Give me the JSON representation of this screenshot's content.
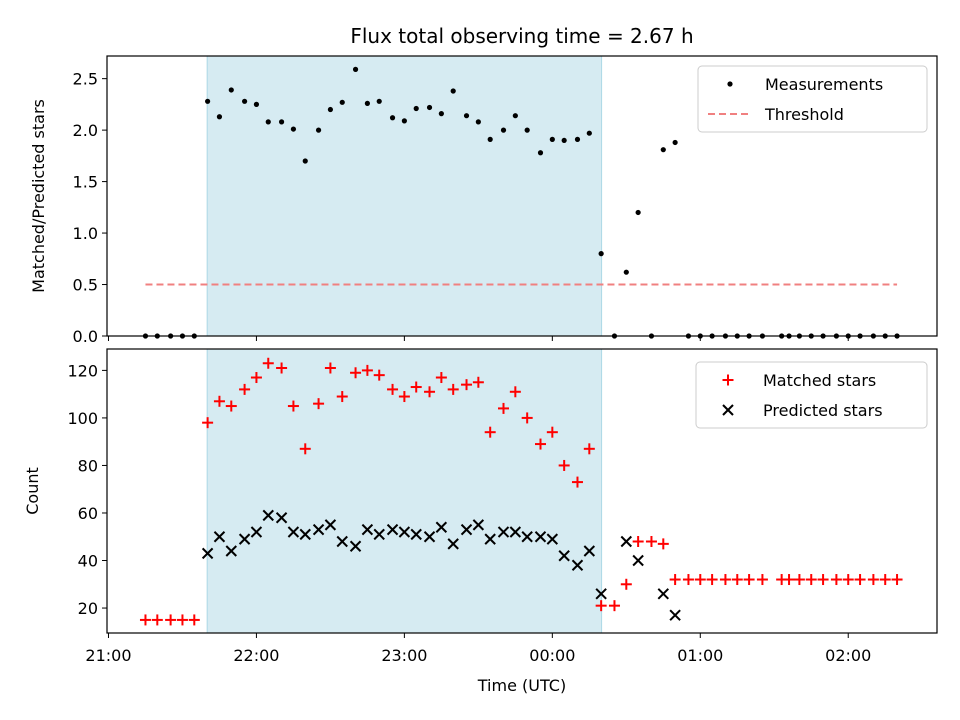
{
  "chart_data": {
    "type": "scatter",
    "title": "Flux total observing time = 2.67 h",
    "xlabel": "Time (UTC)",
    "x_ticks": [
      "21:00",
      "22:00",
      "23:00",
      "00:00",
      "01:00",
      "02:00"
    ],
    "x_tick_hours": [
      21,
      22,
      23,
      24,
      25,
      26
    ],
    "xlim_hours": [
      20.99,
      26.6
    ],
    "shaded_region_hours": [
      21.667,
      24.333
    ],
    "colors": {
      "shade": "#add8e6",
      "matched": "#ff0000",
      "predicted": "#000000",
      "threshold": "#f08080",
      "measurements": "#000000"
    },
    "panels": [
      {
        "ylabel": "Matched/Predicted stars",
        "ylim": [
          0,
          2.72
        ],
        "y_ticks": [
          "0.0",
          "0.5",
          "1.0",
          "1.5",
          "2.0",
          "2.5"
        ],
        "y_tick_values": [
          0,
          0.5,
          1.0,
          1.5,
          2.0,
          2.5
        ],
        "legend": {
          "placement": "top-right",
          "entries": [
            "Measurements",
            "Threshold"
          ]
        },
        "series": [
          {
            "name": "Measurements",
            "marker": "dot",
            "points": [
              [
                21.25,
                0
              ],
              [
                21.33,
                0
              ],
              [
                21.42,
                0
              ],
              [
                21.5,
                0
              ],
              [
                21.58,
                0
              ],
              [
                21.67,
                2.28
              ],
              [
                21.75,
                2.13
              ],
              [
                21.83,
                2.39
              ],
              [
                21.92,
                2.28
              ],
              [
                22.0,
                2.25
              ],
              [
                22.08,
                2.08
              ],
              [
                22.17,
                2.08
              ],
              [
                22.25,
                2.01
              ],
              [
                22.33,
                1.7
              ],
              [
                22.42,
                2.0
              ],
              [
                22.5,
                2.2
              ],
              [
                22.58,
                2.27
              ],
              [
                22.67,
                2.59
              ],
              [
                22.75,
                2.26
              ],
              [
                22.83,
                2.28
              ],
              [
                22.92,
                2.12
              ],
              [
                23.0,
                2.09
              ],
              [
                23.08,
                2.21
              ],
              [
                23.17,
                2.22
              ],
              [
                23.25,
                2.16
              ],
              [
                23.33,
                2.38
              ],
              [
                23.42,
                2.14
              ],
              [
                23.5,
                2.08
              ],
              [
                23.58,
                1.91
              ],
              [
                23.67,
                2.0
              ],
              [
                23.75,
                2.14
              ],
              [
                23.83,
                2.0
              ],
              [
                23.92,
                1.78
              ],
              [
                24.0,
                1.91
              ],
              [
                24.08,
                1.9
              ],
              [
                24.17,
                1.91
              ],
              [
                24.25,
                1.97
              ],
              [
                24.33,
                0.8
              ],
              [
                24.42,
                0
              ],
              [
                24.5,
                0.62
              ],
              [
                24.58,
                1.2
              ],
              [
                24.67,
                0
              ],
              [
                24.75,
                1.81
              ],
              [
                24.83,
                1.88
              ],
              [
                24.92,
                0
              ],
              [
                25.0,
                0
              ],
              [
                25.08,
                0
              ],
              [
                25.17,
                0
              ],
              [
                25.25,
                0
              ],
              [
                25.33,
                0
              ],
              [
                25.42,
                0
              ],
              [
                25.55,
                0
              ],
              [
                25.6,
                0
              ],
              [
                25.67,
                0
              ],
              [
                25.75,
                0
              ],
              [
                25.83,
                0
              ],
              [
                25.92,
                0
              ],
              [
                26.0,
                0
              ],
              [
                26.08,
                0
              ],
              [
                26.17,
                0
              ],
              [
                26.25,
                0
              ],
              [
                26.33,
                0
              ]
            ]
          },
          {
            "name": "Threshold",
            "marker": "dashed-line",
            "points": [
              [
                21.25,
                0.5
              ],
              [
                26.33,
                0.5
              ]
            ]
          }
        ]
      },
      {
        "ylabel": "Count",
        "ylim": [
          9.5,
          129
        ],
        "y_ticks": [
          "20",
          "40",
          "60",
          "80",
          "100",
          "120"
        ],
        "y_tick_values": [
          20,
          40,
          60,
          80,
          100,
          120
        ],
        "legend": {
          "placement": "top-right",
          "entries": [
            "Matched stars",
            "Predicted stars"
          ]
        },
        "series": [
          {
            "name": "Matched stars",
            "marker": "plus",
            "points": [
              [
                21.25,
                15
              ],
              [
                21.33,
                15
              ],
              [
                21.42,
                15
              ],
              [
                21.5,
                15
              ],
              [
                21.58,
                15
              ],
              [
                21.67,
                98
              ],
              [
                21.75,
                107
              ],
              [
                21.83,
                105
              ],
              [
                21.92,
                112
              ],
              [
                22.0,
                117
              ],
              [
                22.08,
                123
              ],
              [
                22.17,
                121
              ],
              [
                22.25,
                105
              ],
              [
                22.33,
                87
              ],
              [
                22.42,
                106
              ],
              [
                22.5,
                121
              ],
              [
                22.58,
                109
              ],
              [
                22.67,
                119
              ],
              [
                22.75,
                120
              ],
              [
                22.83,
                118
              ],
              [
                22.92,
                112
              ],
              [
                23.0,
                109
              ],
              [
                23.08,
                113
              ],
              [
                23.17,
                111
              ],
              [
                23.25,
                117
              ],
              [
                23.33,
                112
              ],
              [
                23.42,
                114
              ],
              [
                23.5,
                115
              ],
              [
                23.58,
                94
              ],
              [
                23.67,
                104
              ],
              [
                23.75,
                111
              ],
              [
                23.83,
                100
              ],
              [
                23.92,
                89
              ],
              [
                24.0,
                94
              ],
              [
                24.08,
                80
              ],
              [
                24.17,
                73
              ],
              [
                24.25,
                87
              ],
              [
                24.33,
                21
              ],
              [
                24.42,
                21
              ],
              [
                24.5,
                30
              ],
              [
                24.58,
                48
              ],
              [
                24.67,
                48
              ],
              [
                24.75,
                47
              ],
              [
                24.83,
                32
              ],
              [
                24.92,
                32
              ],
              [
                25.0,
                32
              ],
              [
                25.08,
                32
              ],
              [
                25.17,
                32
              ],
              [
                25.25,
                32
              ],
              [
                25.33,
                32
              ],
              [
                25.42,
                32
              ],
              [
                25.55,
                32
              ],
              [
                25.6,
                32
              ],
              [
                25.67,
                32
              ],
              [
                25.75,
                32
              ],
              [
                25.83,
                32
              ],
              [
                25.92,
                32
              ],
              [
                26.0,
                32
              ],
              [
                26.08,
                32
              ],
              [
                26.17,
                32
              ],
              [
                26.25,
                32
              ],
              [
                26.33,
                32
              ]
            ]
          },
          {
            "name": "Predicted stars",
            "marker": "x",
            "points": [
              [
                21.67,
                43
              ],
              [
                21.75,
                50
              ],
              [
                21.83,
                44
              ],
              [
                21.92,
                49
              ],
              [
                22.0,
                52
              ],
              [
                22.08,
                59
              ],
              [
                22.17,
                58
              ],
              [
                22.25,
                52
              ],
              [
                22.33,
                51
              ],
              [
                22.42,
                53
              ],
              [
                22.5,
                55
              ],
              [
                22.58,
                48
              ],
              [
                22.67,
                46
              ],
              [
                22.75,
                53
              ],
              [
                22.83,
                51
              ],
              [
                22.92,
                53
              ],
              [
                23.0,
                52
              ],
              [
                23.08,
                51
              ],
              [
                23.17,
                50
              ],
              [
                23.25,
                54
              ],
              [
                23.33,
                47
              ],
              [
                23.42,
                53
              ],
              [
                23.5,
                55
              ],
              [
                23.58,
                49
              ],
              [
                23.67,
                52
              ],
              [
                23.75,
                52
              ],
              [
                23.83,
                50
              ],
              [
                23.92,
                50
              ],
              [
                24.0,
                49
              ],
              [
                24.08,
                42
              ],
              [
                24.17,
                38
              ],
              [
                24.25,
                44
              ],
              [
                24.33,
                26
              ],
              [
                24.5,
                48
              ],
              [
                24.58,
                40
              ],
              [
                24.75,
                26
              ],
              [
                24.83,
                17
              ]
            ]
          }
        ]
      }
    ]
  }
}
